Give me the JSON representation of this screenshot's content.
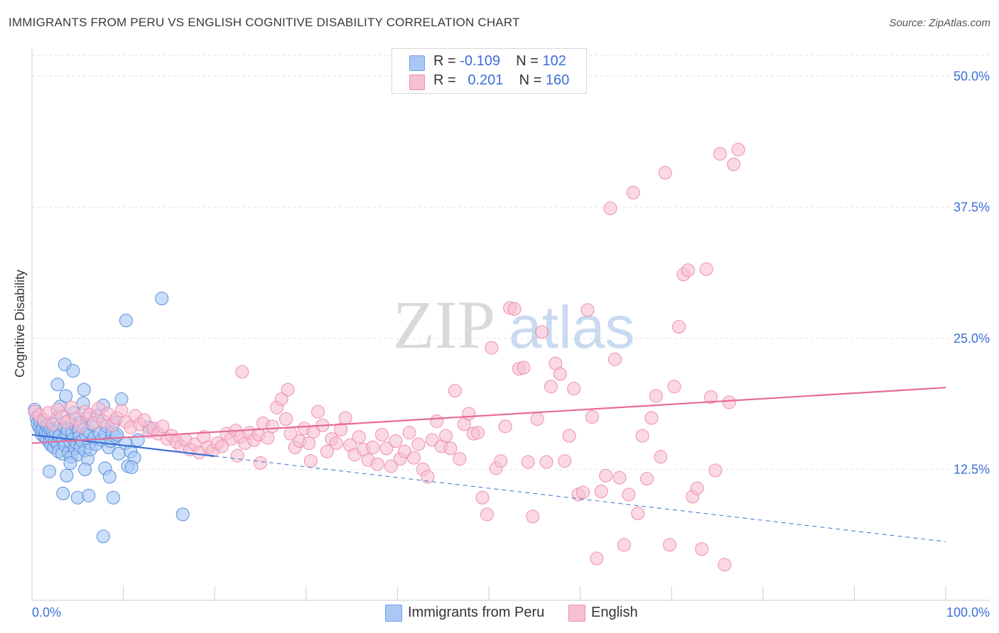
{
  "title": "IMMIGRANTS FROM PERU VS ENGLISH COGNITIVE DISABILITY CORRELATION CHART",
  "source": "Source: ZipAtlas.com",
  "watermark": {
    "zip": "ZIP",
    "atlas": "atlas"
  },
  "legend": {
    "rows": [
      {
        "r_label": "R = ",
        "r_value": "-0.109",
        "n_label": "N = ",
        "n_value": "102",
        "color": "#a9c8f5",
        "border": "#6f9fe0"
      },
      {
        "r_label": "R = ",
        "r_value": "0.201",
        "n_label": "N = ",
        "n_value": "160",
        "color": "#f7bfd2",
        "border": "#ee8fb0"
      }
    ]
  },
  "bottom_legend": [
    {
      "label": "Immigrants from Peru",
      "color": "#a9c8f5",
      "border": "#6f9fe0"
    },
    {
      "label": "English",
      "color": "#f7bfd2",
      "border": "#ee8fb0"
    }
  ],
  "chart_data": {
    "type": "scatter",
    "title": "IMMIGRANTS FROM PERU VS ENGLISH COGNITIVE DISABILITY CORRELATION CHART",
    "xlabel": "",
    "ylabel": "Cognitive Disability",
    "xlim": [
      0,
      100
    ],
    "ylim": [
      0,
      52
    ],
    "x_tick_labels": [
      "0.0%",
      "100.0%"
    ],
    "y_ticks": [
      12.5,
      25.0,
      37.5,
      50.0
    ],
    "y_tick_labels": [
      "12.5%",
      "25.0%",
      "37.5%",
      "50.0%"
    ],
    "grid": true,
    "series": [
      {
        "name": "Immigrants from Peru",
        "color": "#a9c8f5",
        "stroke": "#5b8fdb",
        "line_color": "#3a72d4",
        "trend": {
          "x0": 0,
          "y0": 15.8,
          "x1": 100,
          "y1": 5.6,
          "solid_until": 20
        },
        "points": [
          [
            0.3,
            18.2
          ],
          [
            0.5,
            17.4
          ],
          [
            0.6,
            16.9
          ],
          [
            0.8,
            16.5
          ],
          [
            0.9,
            17.1
          ],
          [
            1.0,
            16.2
          ],
          [
            1.1,
            15.8
          ],
          [
            1.2,
            16.4
          ],
          [
            1.3,
            17.0
          ],
          [
            1.4,
            15.6
          ],
          [
            1.5,
            16.0
          ],
          [
            1.6,
            15.4
          ],
          [
            1.7,
            16.7
          ],
          [
            1.8,
            15.9
          ],
          [
            1.9,
            15.1
          ],
          [
            2.0,
            16.3
          ],
          [
            2.1,
            14.8
          ],
          [
            2.2,
            15.5
          ],
          [
            2.3,
            16.1
          ],
          [
            2.4,
            14.6
          ],
          [
            2.5,
            15.2
          ],
          [
            2.6,
            16.0
          ],
          [
            2.7,
            17.3
          ],
          [
            2.8,
            15.0
          ],
          [
            2.9,
            14.2
          ],
          [
            3.0,
            15.7
          ],
          [
            3.1,
            18.5
          ],
          [
            3.2,
            16.8
          ],
          [
            3.3,
            14.0
          ],
          [
            3.4,
            15.3
          ],
          [
            3.5,
            16.5
          ],
          [
            3.6,
            14.8
          ],
          [
            3.7,
            19.5
          ],
          [
            3.8,
            15.9
          ],
          [
            3.9,
            16.3
          ],
          [
            4.0,
            14.1
          ],
          [
            4.1,
            17.2
          ],
          [
            4.2,
            15.1
          ],
          [
            4.3,
            13.7
          ],
          [
            4.4,
            16.0
          ],
          [
            4.5,
            15.4
          ],
          [
            4.6,
            17.9
          ],
          [
            4.7,
            14.5
          ],
          [
            4.8,
            16.6
          ],
          [
            4.9,
            15.0
          ],
          [
            5.0,
            13.9
          ],
          [
            5.1,
            16.2
          ],
          [
            5.2,
            15.6
          ],
          [
            5.3,
            14.7
          ],
          [
            5.4,
            17.0
          ],
          [
            5.5,
            15.2
          ],
          [
            5.6,
            18.8
          ],
          [
            5.7,
            16.4
          ],
          [
            5.8,
            14.3
          ],
          [
            5.9,
            15.8
          ],
          [
            6.0,
            17.4
          ],
          [
            6.1,
            13.5
          ],
          [
            6.2,
            16.1
          ],
          [
            6.3,
            15.0
          ],
          [
            6.4,
            14.4
          ],
          [
            6.6,
            16.8
          ],
          [
            6.8,
            15.5
          ],
          [
            7.0,
            14.9
          ],
          [
            7.2,
            17.6
          ],
          [
            7.4,
            16.0
          ],
          [
            7.6,
            15.3
          ],
          [
            7.8,
            18.6
          ],
          [
            8.0,
            15.9
          ],
          [
            8.2,
            16.6
          ],
          [
            8.4,
            14.6
          ],
          [
            8.6,
            15.2
          ],
          [
            8.8,
            16.0
          ],
          [
            9.0,
            17.0
          ],
          [
            9.2,
            15.6
          ],
          [
            9.5,
            14.0
          ],
          [
            9.8,
            19.2
          ],
          [
            10.2,
            15.0
          ],
          [
            10.5,
            12.8
          ],
          [
            10.8,
            14.2
          ],
          [
            11.2,
            13.6
          ],
          [
            2.8,
            20.6
          ],
          [
            3.6,
            22.5
          ],
          [
            4.5,
            21.9
          ],
          [
            5.7,
            20.1
          ],
          [
            1.9,
            12.3
          ],
          [
            3.8,
            11.9
          ],
          [
            5.8,
            12.5
          ],
          [
            8.0,
            12.6
          ],
          [
            8.5,
            11.8
          ],
          [
            10.9,
            12.7
          ],
          [
            3.4,
            10.2
          ],
          [
            5.0,
            9.8
          ],
          [
            6.2,
            10.0
          ],
          [
            8.9,
            9.8
          ],
          [
            7.8,
            6.1
          ],
          [
            16.5,
            8.2
          ],
          [
            14.2,
            28.8
          ],
          [
            10.3,
            26.7
          ],
          [
            12.8,
            16.5
          ],
          [
            11.6,
            15.3
          ],
          [
            9.3,
            15.8
          ],
          [
            4.2,
            13.1
          ]
        ]
      },
      {
        "name": "English",
        "color": "#f7bfd2",
        "stroke": "#ee8fb0",
        "line_color": "#e76b97",
        "trend": {
          "x0": 0,
          "y0": 15.0,
          "x1": 100,
          "y1": 20.3,
          "solid_until": 100
        },
        "points": [
          [
            0.3,
            18.0
          ],
          [
            0.8,
            17.7
          ],
          [
            1.3,
            17.2
          ],
          [
            1.8,
            17.9
          ],
          [
            2.3,
            16.8
          ],
          [
            2.8,
            18.2
          ],
          [
            3.3,
            17.5
          ],
          [
            3.8,
            17.0
          ],
          [
            4.3,
            18.4
          ],
          [
            4.8,
            17.3
          ],
          [
            5.3,
            16.6
          ],
          [
            5.8,
            18.0
          ],
          [
            6.3,
            17.7
          ],
          [
            6.8,
            16.9
          ],
          [
            7.3,
            18.3
          ],
          [
            7.8,
            17.1
          ],
          [
            8.3,
            17.8
          ],
          [
            8.8,
            16.7
          ],
          [
            9.3,
            17.4
          ],
          [
            9.8,
            18.1
          ],
          [
            10.3,
            17.0
          ],
          [
            10.8,
            16.5
          ],
          [
            11.3,
            17.6
          ],
          [
            11.8,
            16.8
          ],
          [
            12.3,
            17.2
          ],
          [
            12.8,
            16.1
          ],
          [
            13.3,
            16.4
          ],
          [
            13.8,
            15.9
          ],
          [
            14.3,
            16.6
          ],
          [
            14.8,
            15.4
          ],
          [
            15.3,
            15.7
          ],
          [
            15.8,
            15.1
          ],
          [
            16.3,
            14.7
          ],
          [
            16.8,
            15.3
          ],
          [
            17.3,
            14.4
          ],
          [
            17.8,
            14.9
          ],
          [
            18.3,
            14.1
          ],
          [
            18.8,
            15.6
          ],
          [
            19.3,
            14.6
          ],
          [
            19.8,
            14.3
          ],
          [
            20.3,
            15.0
          ],
          [
            20.8,
            14.7
          ],
          [
            21.3,
            15.9
          ],
          [
            21.8,
            15.4
          ],
          [
            22.3,
            16.2
          ],
          [
            22.8,
            15.6
          ],
          [
            23.3,
            15.0
          ],
          [
            23.8,
            16.0
          ],
          [
            24.3,
            15.3
          ],
          [
            24.8,
            15.8
          ],
          [
            25.3,
            16.9
          ],
          [
            25.8,
            15.5
          ],
          [
            26.3,
            16.6
          ],
          [
            26.8,
            18.4
          ],
          [
            27.3,
            19.2
          ],
          [
            27.8,
            17.3
          ],
          [
            28.3,
            15.9
          ],
          [
            28.8,
            14.6
          ],
          [
            29.3,
            15.2
          ],
          [
            29.8,
            16.4
          ],
          [
            30.3,
            15.0
          ],
          [
            30.8,
            16.1
          ],
          [
            31.3,
            18.0
          ],
          [
            31.8,
            16.7
          ],
          [
            32.3,
            14.2
          ],
          [
            32.8,
            15.4
          ],
          [
            33.3,
            15.0
          ],
          [
            33.8,
            16.3
          ],
          [
            34.3,
            17.4
          ],
          [
            34.8,
            14.8
          ],
          [
            35.3,
            13.9
          ],
          [
            35.8,
            15.6
          ],
          [
            36.3,
            14.4
          ],
          [
            36.8,
            13.4
          ],
          [
            37.3,
            14.6
          ],
          [
            37.8,
            13.0
          ],
          [
            38.3,
            15.8
          ],
          [
            38.8,
            14.5
          ],
          [
            39.3,
            12.8
          ],
          [
            39.8,
            15.2
          ],
          [
            40.3,
            13.5
          ],
          [
            40.8,
            14.2
          ],
          [
            41.3,
            16.0
          ],
          [
            41.8,
            13.6
          ],
          [
            42.3,
            14.9
          ],
          [
            42.8,
            12.5
          ],
          [
            43.3,
            11.8
          ],
          [
            43.8,
            15.3
          ],
          [
            44.3,
            17.1
          ],
          [
            44.8,
            14.7
          ],
          [
            45.3,
            15.7
          ],
          [
            45.8,
            14.5
          ],
          [
            46.3,
            20.0
          ],
          [
            46.8,
            13.5
          ],
          [
            47.3,
            16.8
          ],
          [
            47.8,
            17.8
          ],
          [
            48.3,
            15.9
          ],
          [
            48.8,
            16.0
          ],
          [
            49.3,
            9.8
          ],
          [
            49.8,
            8.2
          ],
          [
            50.3,
            24.1
          ],
          [
            50.8,
            12.6
          ],
          [
            51.3,
            13.3
          ],
          [
            51.8,
            16.6
          ],
          [
            52.3,
            27.9
          ],
          [
            52.8,
            27.8
          ],
          [
            53.3,
            22.1
          ],
          [
            53.8,
            22.2
          ],
          [
            54.3,
            13.2
          ],
          [
            54.8,
            8.0
          ],
          [
            55.3,
            17.3
          ],
          [
            55.8,
            25.6
          ],
          [
            56.3,
            13.2
          ],
          [
            56.8,
            20.4
          ],
          [
            57.3,
            22.6
          ],
          [
            57.8,
            21.6
          ],
          [
            58.3,
            13.3
          ],
          [
            58.8,
            15.7
          ],
          [
            59.3,
            20.2
          ],
          [
            59.8,
            10.1
          ],
          [
            60.3,
            10.3
          ],
          [
            60.8,
            27.7
          ],
          [
            61.3,
            17.5
          ],
          [
            61.8,
            4.0
          ],
          [
            62.3,
            10.4
          ],
          [
            62.8,
            11.9
          ],
          [
            63.3,
            37.4
          ],
          [
            63.8,
            23.0
          ],
          [
            64.3,
            11.7
          ],
          [
            64.8,
            5.3
          ],
          [
            65.3,
            10.1
          ],
          [
            65.8,
            38.9
          ],
          [
            66.3,
            8.3
          ],
          [
            66.8,
            15.7
          ],
          [
            67.3,
            11.6
          ],
          [
            67.8,
            17.4
          ],
          [
            68.3,
            19.5
          ],
          [
            68.8,
            13.7
          ],
          [
            69.3,
            40.8
          ],
          [
            69.8,
            5.3
          ],
          [
            70.3,
            20.4
          ],
          [
            70.8,
            26.1
          ],
          [
            71.3,
            31.1
          ],
          [
            71.8,
            31.5
          ],
          [
            72.3,
            9.9
          ],
          [
            72.8,
            10.7
          ],
          [
            73.3,
            4.9
          ],
          [
            73.8,
            31.6
          ],
          [
            74.3,
            19.4
          ],
          [
            74.8,
            12.4
          ],
          [
            75.3,
            42.6
          ],
          [
            75.8,
            3.4
          ],
          [
            76.3,
            18.9
          ],
          [
            76.8,
            41.6
          ],
          [
            77.3,
            43.0
          ],
          [
            23.0,
            21.8
          ],
          [
            28.0,
            20.1
          ],
          [
            22.5,
            13.8
          ],
          [
            25.0,
            13.1
          ],
          [
            30.5,
            13.3
          ]
        ]
      }
    ]
  }
}
